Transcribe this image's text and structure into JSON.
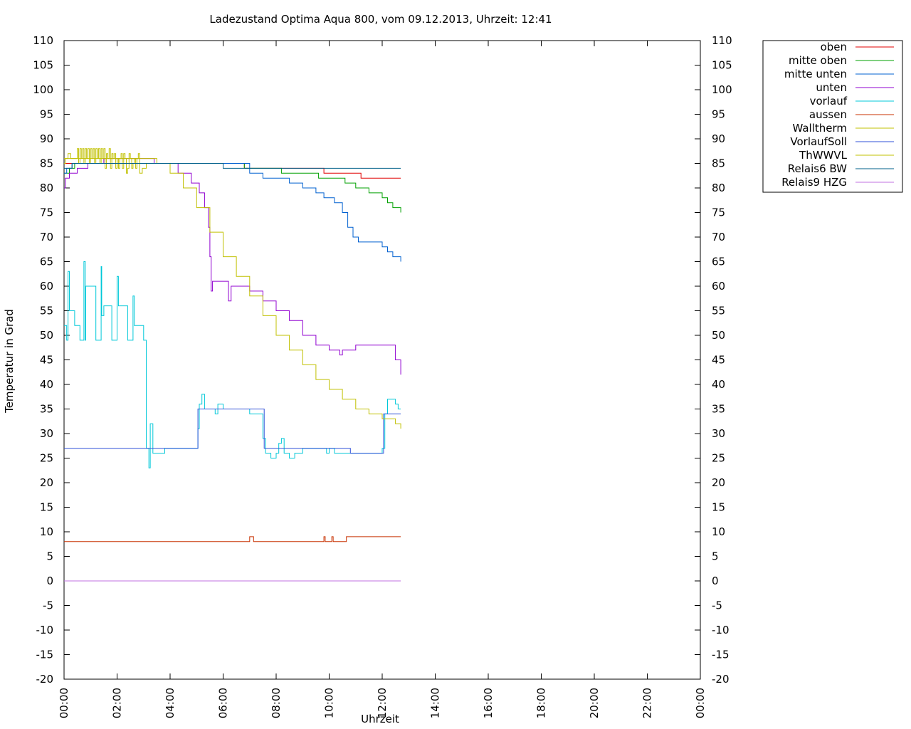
{
  "chart_data": {
    "type": "line",
    "title": "Ladezustand Optima Aqua 800, vom 09.12.2013, Uhrzeit: 12:41",
    "xlabel": "Uhrzeit",
    "ylabel": "Temperatur in Grad",
    "xlim": [
      0,
      24
    ],
    "ylim": [
      -20,
      110
    ],
    "x_unit": "hours",
    "x_tick_labels": [
      "00:00",
      "02:00",
      "04:00",
      "06:00",
      "08:00",
      "10:00",
      "12:00",
      "14:00",
      "16:00",
      "18:00",
      "20:00",
      "22:00",
      "00:00"
    ],
    "x_tick_values": [
      0,
      2,
      4,
      6,
      8,
      10,
      12,
      14,
      16,
      18,
      20,
      22,
      24
    ],
    "y_ticks": [
      -20,
      -15,
      -10,
      -5,
      0,
      5,
      10,
      15,
      20,
      25,
      30,
      35,
      40,
      45,
      50,
      55,
      60,
      65,
      70,
      75,
      80,
      85,
      90,
      95,
      100,
      105,
      110
    ],
    "grid": false,
    "legend_position": "outside-right-top",
    "series": [
      {
        "name": "oben",
        "color": "#e00000",
        "x": [
          0,
          3.4,
          6.8,
          9.8,
          11.2,
          12.7
        ],
        "y": [
          85,
          85,
          84,
          83,
          82,
          82
        ]
      },
      {
        "name": "mitte oben",
        "color": "#00a000",
        "x": [
          0,
          0.2,
          0.4,
          0.6,
          6,
          6.8,
          8.2,
          9.6,
          10.6,
          11,
          11.5,
          12,
          12.2,
          12.4,
          12.7
        ],
        "y": [
          83,
          84,
          85,
          85,
          85,
          84,
          83,
          82,
          81,
          80,
          79,
          78,
          77,
          76,
          75
        ]
      },
      {
        "name": "mitte unten",
        "color": "#0060d0",
        "x": [
          0,
          0.1,
          0.3,
          6,
          7,
          7.5,
          8.5,
          9,
          9.5,
          9.8,
          10.2,
          10.5,
          10.7,
          10.9,
          11.1,
          11.4,
          12,
          12.2,
          12.4,
          12.7
        ],
        "y": [
          83,
          84,
          85,
          85,
          83,
          82,
          81,
          80,
          79,
          78,
          77,
          75,
          72,
          70,
          69,
          69,
          68,
          67,
          66,
          65
        ]
      },
      {
        "name": "unten",
        "color": "#9000d0",
        "x": [
          0,
          0.05,
          0.2,
          0.5,
          0.9,
          1.2,
          1.5,
          2.5,
          3.4,
          4.3,
          4.8,
          5.1,
          5.3,
          5.45,
          5.5,
          5.55,
          5.6,
          5.7,
          6.1,
          6.2,
          6.3,
          6.5,
          7,
          7.5,
          8,
          8.5,
          9,
          9.5,
          10,
          10.4,
          10.5,
          11,
          12.2,
          12.5,
          12.7
        ],
        "y": [
          80,
          82,
          83,
          84,
          85,
          85,
          86,
          86,
          85,
          83,
          81,
          79,
          76,
          72,
          66,
          59,
          61,
          61,
          61,
          57,
          60,
          60,
          59,
          57,
          55,
          53,
          50,
          48,
          47,
          46,
          47,
          48,
          48,
          45,
          42
        ]
      },
      {
        "name": "vorlauf",
        "color": "#00c8d8",
        "x": [
          0,
          0.1,
          0.15,
          0.2,
          0.4,
          0.6,
          0.75,
          0.8,
          0.82,
          1.2,
          1.4,
          1.42,
          1.5,
          1.8,
          2,
          2.05,
          2.4,
          2.6,
          2.65,
          3,
          3.1,
          3.2,
          3.25,
          3.35,
          3.5,
          3.8,
          3.8,
          5,
          5.05,
          5.1,
          5.2,
          5.3,
          5.5,
          5.7,
          5.8,
          6,
          6.5,
          7,
          7.2,
          7.4,
          7.5,
          7.6,
          7.8,
          8,
          8.1,
          8.2,
          8.3,
          8.5,
          8.7,
          8.9,
          9,
          9.5,
          9.8,
          9.85,
          9.9,
          10,
          10.2,
          12,
          12.1,
          12.2,
          12.5,
          12.6,
          12.7
        ],
        "y": [
          52,
          49,
          63,
          55,
          52,
          49,
          65,
          49,
          60,
          49,
          64,
          54,
          56,
          49,
          62,
          56,
          49,
          58,
          52,
          49,
          27,
          23,
          32,
          26,
          26,
          26,
          27,
          27,
          31,
          36,
          38,
          35,
          35,
          34,
          36,
          35,
          35,
          34,
          34,
          34,
          29,
          26,
          25,
          26,
          28,
          29,
          26,
          25,
          26,
          26,
          27,
          27,
          27,
          27,
          26,
          27,
          26,
          27,
          34,
          37,
          36,
          35,
          35
        ]
      },
      {
        "name": "aussen",
        "color": "#c83000",
        "x": [
          0,
          6.9,
          7.0,
          7.1,
          7.15,
          9.75,
          9.8,
          9.85,
          10.1,
          10.15,
          10.6,
          10.65,
          12.7
        ],
        "y": [
          8,
          8,
          9,
          9,
          8,
          8,
          9,
          8,
          9,
          8,
          8,
          9,
          9
        ]
      },
      {
        "name": "Walltherm",
        "color": "#c0c000",
        "x": [
          0,
          0.05,
          0.15,
          0.25,
          0.45,
          0.5,
          0.55,
          0.6,
          0.65,
          0.7,
          0.75,
          0.8,
          0.85,
          0.9,
          0.95,
          1,
          1.05,
          1.1,
          1.15,
          1.2,
          1.25,
          1.3,
          1.35,
          1.4,
          1.45,
          1.5,
          1.55,
          1.6,
          1.65,
          1.7,
          1.75,
          1.8,
          1.85,
          1.9,
          1.95,
          2,
          2.05,
          2.1,
          2.15,
          2.2,
          2.25,
          2.3,
          2.35,
          2.4,
          2.45,
          2.5,
          2.55,
          2.6,
          2.65,
          2.7,
          2.75,
          2.8,
          2.85,
          2.9,
          2.95,
          3,
          3.1,
          3.2,
          3.3
        ],
        "y": [
          85,
          86,
          87,
          86,
          86,
          88,
          85,
          88,
          86,
          88,
          85,
          88,
          86,
          88,
          85,
          88,
          86,
          88,
          85,
          88,
          86,
          88,
          85,
          88,
          86,
          88,
          84,
          87,
          86,
          88,
          84,
          87,
          86,
          87,
          84,
          86,
          84,
          86,
          87,
          84,
          87,
          86,
          83,
          84,
          87,
          86,
          84,
          85,
          86,
          84,
          86,
          87,
          83,
          83,
          84,
          84,
          85,
          85,
          85
        ]
      },
      {
        "name": "VorlaufSoll",
        "color": "#3050d8",
        "x": [
          0,
          5,
          5.05,
          6.9,
          7.5,
          7.55,
          10.8,
          12,
          12.05,
          12.7
        ],
        "y": [
          27,
          27,
          35,
          35,
          35,
          27,
          26,
          26,
          34,
          34
        ]
      },
      {
        "name": "ThWWVL",
        "color": "#c0c000",
        "x": [
          0,
          3,
          3.5,
          4,
          4.5,
          5,
          5.5,
          6,
          6.5,
          7,
          7.5,
          8,
          8.5,
          9,
          9.5,
          10,
          10.5,
          11,
          11.5,
          12,
          12.5,
          12.7
        ],
        "y": [
          86,
          86,
          85,
          83,
          80,
          76,
          71,
          66,
          62,
          58,
          54,
          50,
          47,
          44,
          41,
          39,
          37,
          35,
          34,
          33,
          32,
          31
        ]
      },
      {
        "name": "Relais6 BW",
        "color": "#00608a",
        "x": [
          0,
          0.05,
          0.3,
          2.5,
          5,
          6,
          12.7
        ],
        "y": [
          84,
          84,
          85,
          85,
          85,
          84,
          84
        ]
      },
      {
        "name": "Relais9 HZG",
        "color": "#c070e0",
        "x": [
          0,
          12.7
        ],
        "y": [
          0,
          0
        ]
      }
    ]
  }
}
